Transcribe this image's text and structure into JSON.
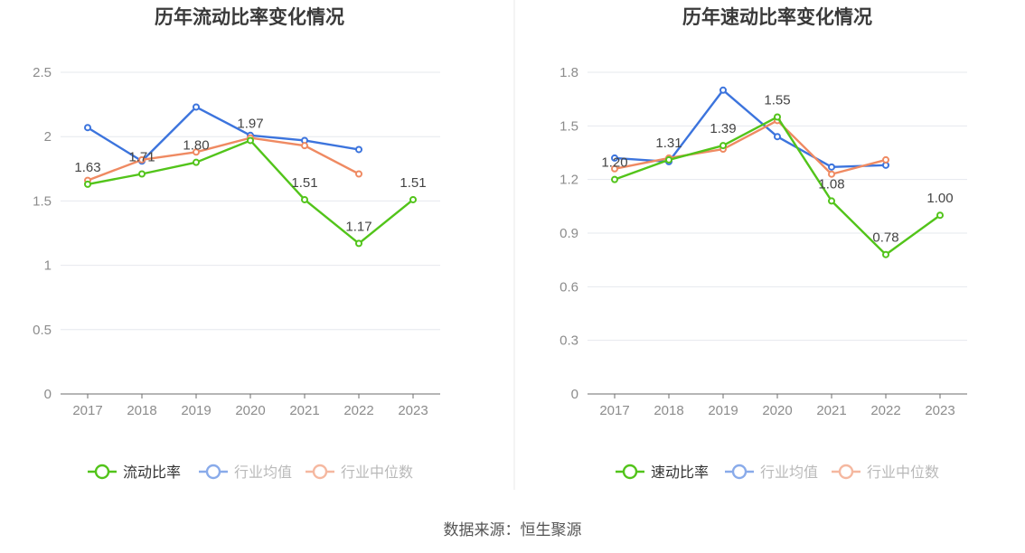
{
  "source_text": "数据来源：恒生聚源",
  "colors": {
    "green": "#52c41a",
    "blue": "#3c74dd",
    "orange": "#ef8a62",
    "grid": "#e6e8ee",
    "axis": "#6e6e6e",
    "tick_text": "#8c8c8c",
    "title_text": "#3a3a3a",
    "label_text": "#444444",
    "divider": "#e8e8e8"
  },
  "chart_data": [
    {
      "type": "line",
      "title": "历年流动比率变化情况",
      "categories": [
        "2017",
        "2018",
        "2019",
        "2020",
        "2021",
        "2022",
        "2023"
      ],
      "ylim": [
        0,
        2.5
      ],
      "yticks": [
        "0",
        "0.5",
        "1",
        "1.5",
        "2",
        "2.5"
      ],
      "grid": true,
      "legend_position": "bottom",
      "series": [
        {
          "name": "流动比率",
          "color": "green",
          "values": [
            1.63,
            1.71,
            1.8,
            1.97,
            1.51,
            1.17,
            1.51
          ],
          "labels": [
            "1.63",
            "1.71",
            "1.80",
            "1.97",
            "1.51",
            "1.17",
            "1.51"
          ]
        },
        {
          "name": "行业均值",
          "color": "blue",
          "values": [
            2.07,
            1.81,
            2.23,
            2.01,
            1.97,
            1.9,
            null
          ]
        },
        {
          "name": "行业中位数",
          "color": "orange",
          "values": [
            1.66,
            1.82,
            1.88,
            1.99,
            1.93,
            1.71,
            null
          ]
        }
      ]
    },
    {
      "type": "line",
      "title": "历年速动比率变化情况",
      "categories": [
        "2017",
        "2018",
        "2019",
        "2020",
        "2021",
        "2022",
        "2023"
      ],
      "ylim": [
        0,
        1.8
      ],
      "yticks": [
        "0",
        "0.3",
        "0.6",
        "0.9",
        "1.2",
        "1.5",
        "1.8"
      ],
      "grid": true,
      "legend_position": "bottom",
      "series": [
        {
          "name": "速动比率",
          "color": "green",
          "values": [
            1.2,
            1.31,
            1.39,
            1.55,
            1.08,
            0.78,
            1.0
          ],
          "labels": [
            "1.20",
            "1.31",
            "1.39",
            "1.55",
            "1.08",
            "0.78",
            "1.00"
          ]
        },
        {
          "name": "行业均值",
          "color": "blue",
          "values": [
            1.32,
            1.3,
            1.7,
            1.44,
            1.27,
            1.28,
            null
          ]
        },
        {
          "name": "行业中位数",
          "color": "orange",
          "values": [
            1.26,
            1.32,
            1.37,
            1.53,
            1.23,
            1.31,
            null
          ]
        }
      ]
    }
  ]
}
